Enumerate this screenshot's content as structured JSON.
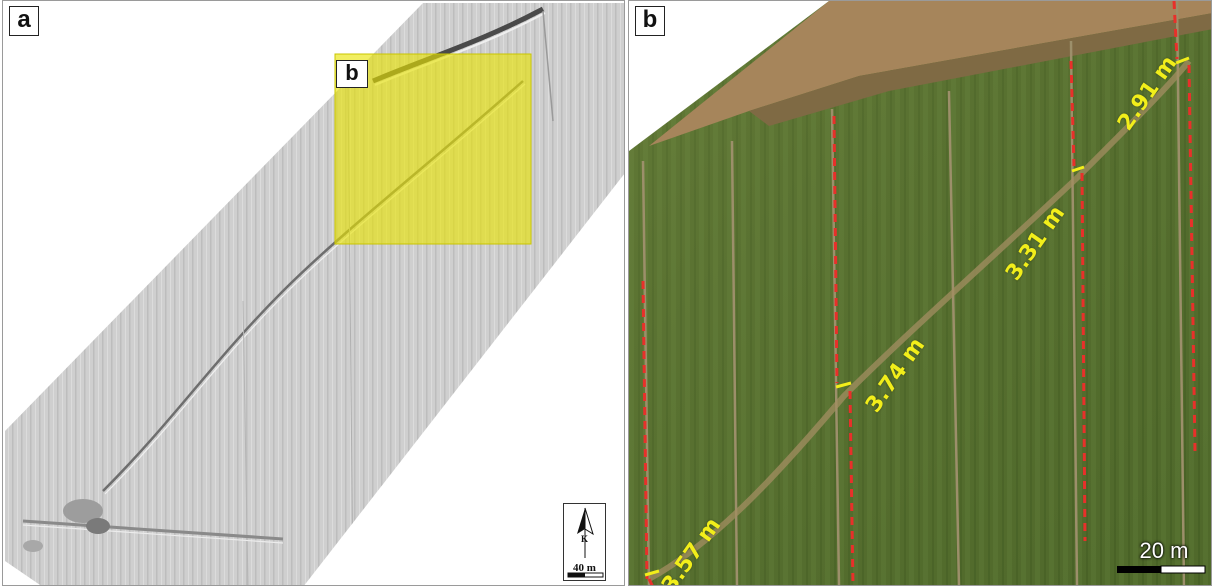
{
  "panel_a": {
    "label": "a",
    "inset_label": "b",
    "north_arrow": {
      "letter": "K",
      "scale_text": "40 m"
    },
    "highlight_color": "#e8e400"
  },
  "panel_b": {
    "label": "b",
    "offsets": [
      {
        "id": "offset-1",
        "text": "3.57 m"
      },
      {
        "id": "offset-2",
        "text": "3.74 m"
      },
      {
        "id": "offset-3",
        "text": "3.31 m"
      },
      {
        "id": "offset-4",
        "text": "2.91 m"
      }
    ],
    "scale_bar_text": "20 m",
    "fault_line_color": "#e8302a",
    "label_color": "#f2ee1a"
  }
}
